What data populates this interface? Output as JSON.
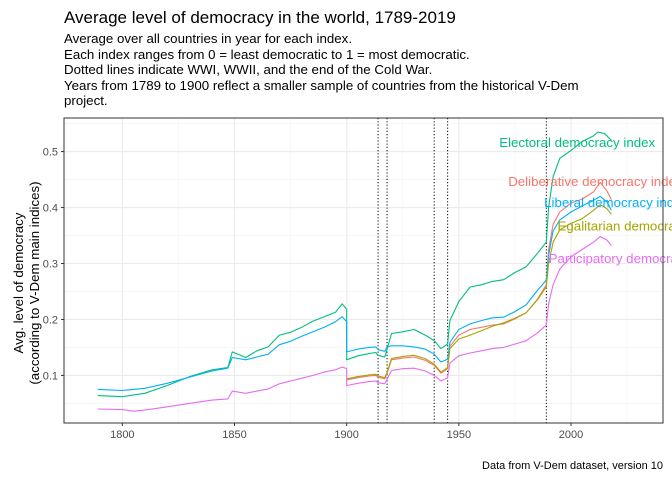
{
  "title": "Average level of democracy in the world, 1789-2019",
  "subtitle_lines": [
    "Average over all countries in year for each index.",
    "Each index ranges from 0 = least democratic to 1 = most democratic.",
    "Dotted lines indicate WWI, WWII, and the end of the Cold War.",
    "Years from 1789 to 1900 reflect a smaller sample of countries from the historical V-Dem",
    "project."
  ],
  "caption": "Data from V-Dem dataset, version 10",
  "chart_data": {
    "type": "line",
    "ylabel_lines": [
      "Avg. level of democracy",
      "(according to V-Dem main indices)"
    ],
    "xlabel": "",
    "xlim": [
      1774,
      2041
    ],
    "ylim": [
      0.015,
      0.56
    ],
    "x_ticks": [
      1800,
      1850,
      1900,
      1950,
      2000
    ],
    "y_ticks": [
      0.1,
      0.2,
      0.3,
      0.4,
      0.5
    ],
    "y_tick_labels": [
      "0.1",
      "0.2",
      "0.3",
      "0.4",
      "0.5"
    ],
    "grid": true,
    "vlines": [
      1914,
      1918,
      1939,
      1945,
      1989
    ],
    "series": [
      {
        "name": "Electoral democracy index",
        "color": "#00BF7D",
        "label_year": 1968,
        "label_value": 0.517,
        "points": [
          [
            1789,
            0.064
          ],
          [
            1800,
            0.062
          ],
          [
            1810,
            0.068
          ],
          [
            1820,
            0.082
          ],
          [
            1830,
            0.098
          ],
          [
            1840,
            0.11
          ],
          [
            1847,
            0.114
          ],
          [
            1849,
            0.142
          ],
          [
            1855,
            0.132
          ],
          [
            1860,
            0.144
          ],
          [
            1865,
            0.151
          ],
          [
            1870,
            0.172
          ],
          [
            1875,
            0.177
          ],
          [
            1880,
            0.186
          ],
          [
            1885,
            0.197
          ],
          [
            1890,
            0.205
          ],
          [
            1895,
            0.213
          ],
          [
            1898,
            0.228
          ],
          [
            1900,
            0.218
          ],
          [
            1900,
            0.128
          ],
          [
            1905,
            0.135
          ],
          [
            1910,
            0.139
          ],
          [
            1913,
            0.141
          ],
          [
            1914,
            0.136
          ],
          [
            1917,
            0.133
          ],
          [
            1918,
            0.147
          ],
          [
            1920,
            0.175
          ],
          [
            1925,
            0.178
          ],
          [
            1930,
            0.182
          ],
          [
            1935,
            0.172
          ],
          [
            1939,
            0.162
          ],
          [
            1942,
            0.148
          ],
          [
            1945,
            0.156
          ],
          [
            1946,
            0.198
          ],
          [
            1950,
            0.232
          ],
          [
            1955,
            0.258
          ],
          [
            1960,
            0.262
          ],
          [
            1965,
            0.268
          ],
          [
            1970,
            0.271
          ],
          [
            1975,
            0.284
          ],
          [
            1980,
            0.294
          ],
          [
            1985,
            0.318
          ],
          [
            1989,
            0.338
          ],
          [
            1990,
            0.4
          ],
          [
            1992,
            0.455
          ],
          [
            1995,
            0.488
          ],
          [
            2000,
            0.502
          ],
          [
            2005,
            0.518
          ],
          [
            2010,
            0.528
          ],
          [
            2012,
            0.535
          ],
          [
            2015,
            0.532
          ],
          [
            2018,
            0.52
          ]
        ]
      },
      {
        "name": "Deliberative democracy index",
        "color": "#F8766D",
        "label_year": 1972,
        "label_value": 0.447,
        "points": [
          [
            1900,
            0.092
          ],
          [
            1905,
            0.096
          ],
          [
            1910,
            0.099
          ],
          [
            1913,
            0.1
          ],
          [
            1914,
            0.097
          ],
          [
            1917,
            0.094
          ],
          [
            1918,
            0.104
          ],
          [
            1920,
            0.128
          ],
          [
            1925,
            0.131
          ],
          [
            1930,
            0.133
          ],
          [
            1935,
            0.127
          ],
          [
            1939,
            0.118
          ],
          [
            1942,
            0.104
          ],
          [
            1945,
            0.112
          ],
          [
            1946,
            0.152
          ],
          [
            1950,
            0.172
          ],
          [
            1955,
            0.182
          ],
          [
            1960,
            0.186
          ],
          [
            1965,
            0.19
          ],
          [
            1970,
            0.192
          ],
          [
            1975,
            0.201
          ],
          [
            1980,
            0.212
          ],
          [
            1985,
            0.236
          ],
          [
            1989,
            0.262
          ],
          [
            1990,
            0.325
          ],
          [
            1992,
            0.37
          ],
          [
            1995,
            0.392
          ],
          [
            2000,
            0.408
          ],
          [
            2005,
            0.415
          ],
          [
            2010,
            0.428
          ],
          [
            2013,
            0.445
          ],
          [
            2016,
            0.43
          ],
          [
            2018,
            0.414
          ]
        ]
      },
      {
        "name": "Liberal democracy index",
        "color": "#00B0F6",
        "label_year": 1988,
        "label_value": 0.41,
        "points": [
          [
            1789,
            0.075
          ],
          [
            1800,
            0.073
          ],
          [
            1810,
            0.077
          ],
          [
            1820,
            0.086
          ],
          [
            1830,
            0.097
          ],
          [
            1840,
            0.108
          ],
          [
            1847,
            0.113
          ],
          [
            1849,
            0.132
          ],
          [
            1855,
            0.128
          ],
          [
            1860,
            0.133
          ],
          [
            1865,
            0.138
          ],
          [
            1870,
            0.155
          ],
          [
            1875,
            0.161
          ],
          [
            1880,
            0.17
          ],
          [
            1885,
            0.178
          ],
          [
            1890,
            0.186
          ],
          [
            1895,
            0.196
          ],
          [
            1898,
            0.205
          ],
          [
            1900,
            0.196
          ],
          [
            1900,
            0.142
          ],
          [
            1905,
            0.147
          ],
          [
            1910,
            0.15
          ],
          [
            1913,
            0.151
          ],
          [
            1914,
            0.146
          ],
          [
            1917,
            0.143
          ],
          [
            1918,
            0.151
          ],
          [
            1920,
            0.153
          ],
          [
            1925,
            0.153
          ],
          [
            1930,
            0.151
          ],
          [
            1935,
            0.147
          ],
          [
            1939,
            0.138
          ],
          [
            1942,
            0.124
          ],
          [
            1945,
            0.129
          ],
          [
            1946,
            0.159
          ],
          [
            1950,
            0.182
          ],
          [
            1955,
            0.192
          ],
          [
            1960,
            0.198
          ],
          [
            1965,
            0.203
          ],
          [
            1970,
            0.204
          ],
          [
            1975,
            0.214
          ],
          [
            1980,
            0.226
          ],
          [
            1985,
            0.252
          ],
          [
            1989,
            0.27
          ],
          [
            1990,
            0.315
          ],
          [
            1992,
            0.358
          ],
          [
            1995,
            0.378
          ],
          [
            2000,
            0.392
          ],
          [
            2005,
            0.403
          ],
          [
            2010,
            0.413
          ],
          [
            2013,
            0.42
          ],
          [
            2016,
            0.41
          ],
          [
            2018,
            0.395
          ]
        ]
      },
      {
        "name": "Egalitarian democracy index",
        "color": "#A3A500",
        "label_year": 1994,
        "label_value": 0.368,
        "points": [
          [
            1900,
            0.094
          ],
          [
            1905,
            0.098
          ],
          [
            1910,
            0.101
          ],
          [
            1913,
            0.102
          ],
          [
            1914,
            0.099
          ],
          [
            1917,
            0.096
          ],
          [
            1918,
            0.106
          ],
          [
            1920,
            0.13
          ],
          [
            1925,
            0.134
          ],
          [
            1930,
            0.136
          ],
          [
            1935,
            0.13
          ],
          [
            1939,
            0.12
          ],
          [
            1942,
            0.106
          ],
          [
            1945,
            0.114
          ],
          [
            1946,
            0.148
          ],
          [
            1950,
            0.165
          ],
          [
            1955,
            0.172
          ],
          [
            1960,
            0.18
          ],
          [
            1965,
            0.188
          ],
          [
            1970,
            0.194
          ],
          [
            1975,
            0.202
          ],
          [
            1980,
            0.212
          ],
          [
            1985,
            0.235
          ],
          [
            1989,
            0.258
          ],
          [
            1990,
            0.3
          ],
          [
            1992,
            0.338
          ],
          [
            1995,
            0.36
          ],
          [
            2000,
            0.372
          ],
          [
            2005,
            0.38
          ],
          [
            2010,
            0.395
          ],
          [
            2013,
            0.405
          ],
          [
            2016,
            0.398
          ],
          [
            2018,
            0.388
          ]
        ]
      },
      {
        "name": "Participatory democracy index",
        "color": "#E76BF3",
        "label_year": 1990,
        "label_value": 0.31,
        "points": [
          [
            1789,
            0.04
          ],
          [
            1800,
            0.039
          ],
          [
            1805,
            0.036
          ],
          [
            1810,
            0.038
          ],
          [
            1820,
            0.044
          ],
          [
            1830,
            0.05
          ],
          [
            1840,
            0.056
          ],
          [
            1847,
            0.058
          ],
          [
            1849,
            0.072
          ],
          [
            1855,
            0.068
          ],
          [
            1860,
            0.072
          ],
          [
            1865,
            0.076
          ],
          [
            1870,
            0.085
          ],
          [
            1875,
            0.09
          ],
          [
            1880,
            0.095
          ],
          [
            1885,
            0.1
          ],
          [
            1890,
            0.106
          ],
          [
            1895,
            0.11
          ],
          [
            1898,
            0.115
          ],
          [
            1900,
            0.112
          ],
          [
            1900,
            0.082
          ],
          [
            1905,
            0.086
          ],
          [
            1910,
            0.089
          ],
          [
            1913,
            0.09
          ],
          [
            1914,
            0.087
          ],
          [
            1917,
            0.085
          ],
          [
            1918,
            0.093
          ],
          [
            1920,
            0.109
          ],
          [
            1925,
            0.112
          ],
          [
            1930,
            0.113
          ],
          [
            1935,
            0.108
          ],
          [
            1939,
            0.1
          ],
          [
            1942,
            0.09
          ],
          [
            1945,
            0.096
          ],
          [
            1946,
            0.122
          ],
          [
            1950,
            0.135
          ],
          [
            1955,
            0.14
          ],
          [
            1960,
            0.144
          ],
          [
            1965,
            0.148
          ],
          [
            1970,
            0.15
          ],
          [
            1975,
            0.156
          ],
          [
            1980,
            0.162
          ],
          [
            1985,
            0.176
          ],
          [
            1989,
            0.19
          ],
          [
            1990,
            0.228
          ],
          [
            1992,
            0.262
          ],
          [
            1995,
            0.29
          ],
          [
            2000,
            0.312
          ],
          [
            2005,
            0.325
          ],
          [
            2010,
            0.338
          ],
          [
            2013,
            0.348
          ],
          [
            2016,
            0.342
          ],
          [
            2018,
            0.332
          ]
        ]
      }
    ]
  }
}
